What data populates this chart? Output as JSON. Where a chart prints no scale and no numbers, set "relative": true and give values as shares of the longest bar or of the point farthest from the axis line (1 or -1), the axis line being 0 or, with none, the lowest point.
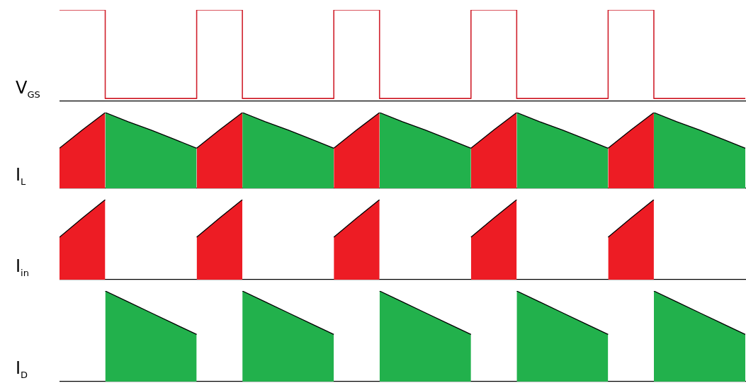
{
  "chart_data": [
    {
      "type": "step",
      "ylabel": "V$_{GS}$",
      "relative": true,
      "tick_labels": false,
      "marker": "none",
      "categories": [
        null,
        null,
        null,
        null,
        null,
        null,
        null,
        null,
        null,
        null,
        null,
        null,
        null,
        null,
        null,
        null,
        null,
        null,
        null,
        null,
        null,
        null,
        null,
        null,
        null,
        null,
        null,
        null,
        null,
        null,
        null
      ],
      "series": [
        {
          "color": "#d0202c",
          "values": [
            1,
            1,
            0.03,
            0.03,
            0.03,
            0.03,
            1,
            1,
            0.03,
            0.03,
            0.03,
            0.03,
            1,
            1,
            0.03,
            0.03,
            0.03,
            0.03,
            1,
            1,
            0.03,
            0.03,
            0.03,
            0.03,
            1,
            1,
            0.03,
            0.03,
            0.03,
            0.03,
            0.03
          ]
        }
      ]
    },
    {
      "type": "area",
      "ylabel": "I$_{L}$",
      "relative": true,
      "tick_labels": false,
      "marker": "none",
      "categories": [
        null,
        null,
        null,
        null,
        null,
        null,
        null,
        null,
        null,
        null,
        null,
        null,
        null,
        null,
        null,
        null,
        null,
        null,
        null,
        null,
        null,
        null,
        null,
        null,
        null,
        null,
        null,
        null,
        null,
        null,
        null
      ],
      "series": [
        {
          "color": "#ed1c24",
          "values": [
            0.53,
            0.77,
            1,
            null,
            null,
            null,
            0.53,
            0.77,
            1,
            null,
            null,
            null,
            0.53,
            0.77,
            1,
            null,
            null,
            null,
            0.53,
            0.77,
            1,
            null,
            null,
            null,
            0.53,
            0.77,
            1,
            null,
            null,
            null,
            null
          ]
        },
        {
          "color": "#22b14c",
          "values": [
            null,
            null,
            1,
            0.88,
            0.77,
            0.65,
            0.53,
            null,
            1,
            0.88,
            0.77,
            0.65,
            0.53,
            null,
            1,
            0.88,
            0.77,
            0.65,
            0.53,
            null,
            1,
            0.88,
            0.77,
            0.65,
            0.53,
            null,
            1,
            0.88,
            0.77,
            0.65,
            0.53
          ]
        }
      ]
    },
    {
      "type": "area",
      "ylabel": "I$_{in}$",
      "relative": true,
      "tick_labels": false,
      "marker": "none",
      "categories": [
        null,
        null,
        null,
        null,
        null,
        null,
        null,
        null,
        null,
        null,
        null,
        null,
        null,
        null,
        null,
        null,
        null,
        null,
        null,
        null,
        null,
        null,
        null,
        null,
        null,
        null,
        null,
        null,
        null,
        null,
        null
      ],
      "series": [
        {
          "color": "#ed1c24",
          "values": [
            0.53,
            0.77,
            1,
            null,
            null,
            null,
            0.53,
            0.77,
            1,
            null,
            null,
            null,
            0.53,
            0.77,
            1,
            null,
            null,
            null,
            0.53,
            0.77,
            1,
            null,
            null,
            null,
            0.53,
            0.77,
            1,
            null,
            null,
            null,
            null
          ]
        }
      ]
    },
    {
      "type": "area",
      "ylabel": "I$_{D}$",
      "relative": true,
      "tick_labels": false,
      "marker": "none",
      "categories": [
        null,
        null,
        null,
        null,
        null,
        null,
        null,
        null,
        null,
        null,
        null,
        null,
        null,
        null,
        null,
        null,
        null,
        null,
        null,
        null,
        null,
        null,
        null,
        null,
        null,
        null,
        null,
        null,
        null,
        null,
        null
      ],
      "series": [
        {
          "color": "#22b14c",
          "values": [
            null,
            null,
            1,
            0.88,
            0.76,
            0.64,
            0.52,
            null,
            1,
            0.88,
            0.76,
            0.64,
            0.52,
            null,
            1,
            0.88,
            0.76,
            0.64,
            0.52,
            null,
            1,
            0.88,
            0.76,
            0.64,
            0.52,
            null,
            1,
            0.88,
            0.76,
            0.64,
            0.52
          ]
        }
      ]
    }
  ]
}
